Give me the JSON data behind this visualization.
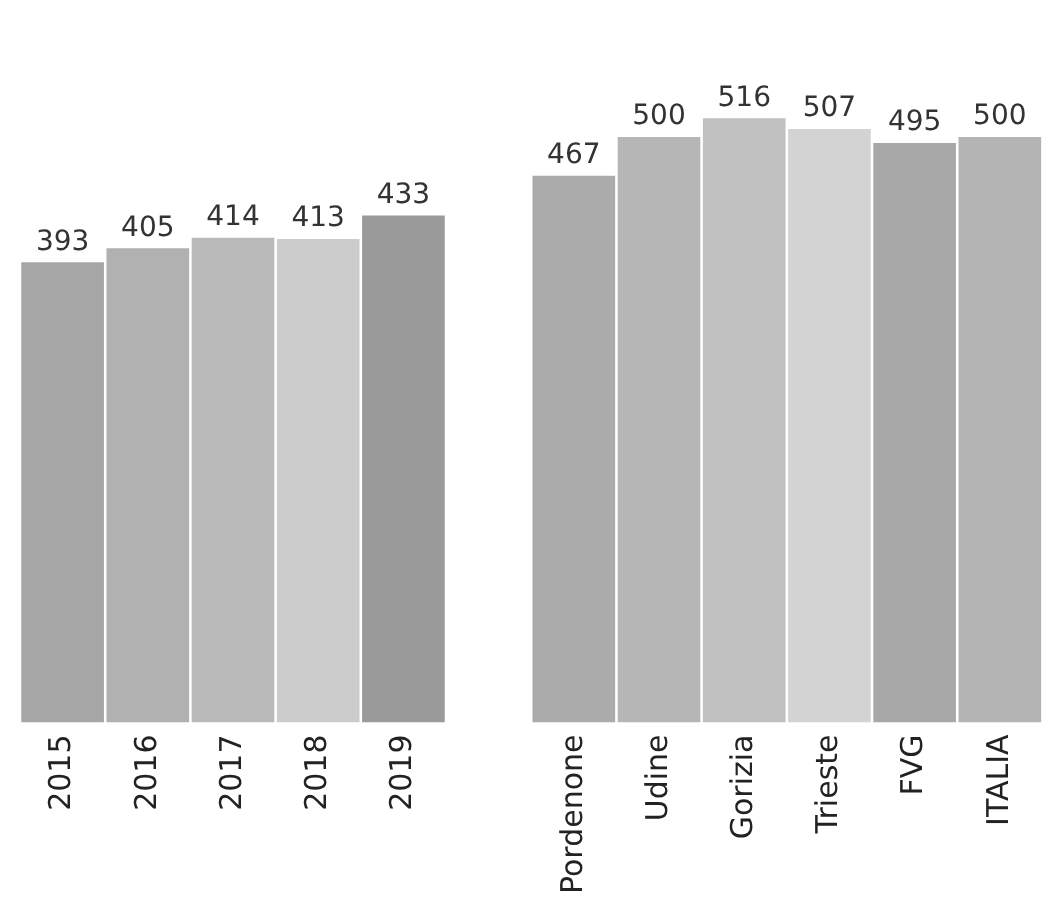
{
  "chart_data": {
    "type": "bar",
    "categories": [
      "2015",
      "2016",
      "2017",
      "2018",
      "2019",
      null,
      "Pordenone",
      "Udine",
      "Gorizia",
      "Trieste",
      "FVG",
      "ITALIA"
    ],
    "values": [
      393,
      405,
      414,
      413,
      433,
      null,
      467,
      500,
      516,
      507,
      495,
      500
    ],
    "colors": [
      "#a6a6a6",
      "#b1b1b1",
      "#bababa",
      "#cccccc",
      "#9a9a9a",
      "#ffffff",
      "#ababab",
      "#b6b6b6",
      "#c0c0c0",
      "#d3d3d3",
      "#a8a8a8",
      "#b4b4b4"
    ],
    "tick_labels": "x",
    "data_labels": true
  }
}
